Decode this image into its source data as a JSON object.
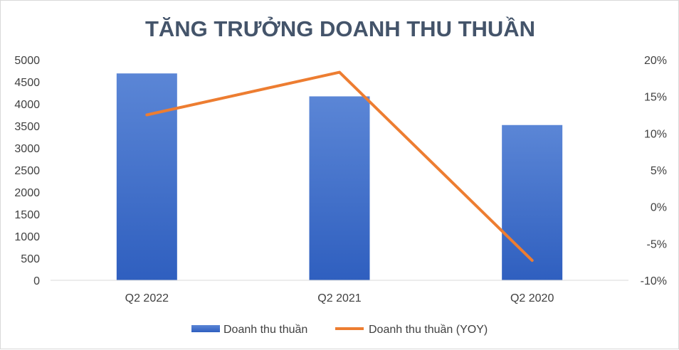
{
  "chart_data": {
    "type": "bar",
    "title": "TĂNG TRƯỞNG DOANH THU THUẦN",
    "categories": [
      "Q2 2022",
      "Q2 2021",
      "Q2 2020"
    ],
    "series": [
      {
        "name": "Doanh thu thuần",
        "type": "bar",
        "axis": "left",
        "values": [
          4690,
          4170,
          3520
        ],
        "color": "#4472c4"
      },
      {
        "name": "Doanh thu thuần (YOY)",
        "type": "line",
        "axis": "right",
        "values": [
          12.5,
          18.3,
          -7.3
        ],
        "color": "#ed7d31"
      }
    ],
    "y_left": {
      "range": [
        0,
        5000
      ],
      "ticks": [
        "0",
        "500",
        "1000",
        "1500",
        "2000",
        "2500",
        "3000",
        "3500",
        "4000",
        "4500",
        "5000"
      ]
    },
    "y_right": {
      "range": [
        -10,
        20
      ],
      "ticks": [
        "-10%",
        "-5%",
        "0%",
        "5%",
        "10%",
        "15%",
        "20%"
      ]
    },
    "grid": false,
    "legend_position": "bottom"
  }
}
